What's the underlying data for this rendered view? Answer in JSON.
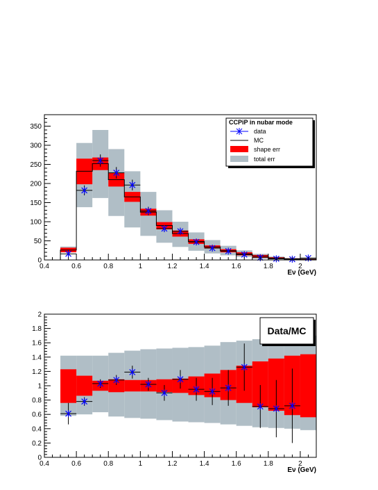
{
  "chart_data": [
    {
      "type": "histogram",
      "xlabel": "Eν (GeV)",
      "xlim": [
        0.4,
        2.1
      ],
      "ylim": [
        0,
        380
      ],
      "xticks": [
        0.4,
        0.6,
        0.8,
        1,
        1.2,
        1.4,
        1.6,
        1.8,
        2
      ],
      "xtick_labels": [
        "0.4",
        "0.6",
        "0.8",
        "1",
        "1.2",
        "1.4",
        "1.6",
        "1.8",
        "2"
      ],
      "yticks": [
        0,
        50,
        100,
        150,
        200,
        250,
        300,
        350
      ],
      "ytick_labels": [
        "0",
        "50",
        "100",
        "150",
        "200",
        "250",
        "300",
        "350"
      ],
      "bin_edges": [
        0.5,
        0.6,
        0.7,
        0.8,
        0.9,
        1.0,
        1.1,
        1.2,
        1.3,
        1.4,
        1.5,
        1.6,
        1.7,
        1.8,
        1.9,
        2.0,
        2.1
      ],
      "legend": {
        "title": "CCPiP in nubar mode",
        "entries": [
          "data",
          "MC",
          "shape err",
          "total err"
        ],
        "position": "top-right"
      },
      "series": [
        {
          "name": "MC",
          "kind": "step",
          "color": "#000000",
          "values": [
            26,
            232,
            252,
            210,
            165,
            125,
            90,
            69,
            48,
            34,
            24,
            16,
            10,
            5,
            3,
            2
          ]
        },
        {
          "name": "shape err",
          "kind": "band",
          "color": "#ff0000",
          "low": [
            20,
            198,
            235,
            192,
            152,
            116,
            80,
            61,
            42,
            30,
            20,
            12,
            7,
            3,
            2,
            1
          ],
          "high": [
            32,
            265,
            268,
            228,
            178,
            134,
            99,
            77,
            54,
            38,
            28,
            20,
            13,
            7,
            4,
            3
          ]
        },
        {
          "name": "total err",
          "kind": "band",
          "color": "#b0bec6",
          "low": [
            20,
            138,
            162,
            115,
            85,
            63,
            45,
            34,
            24,
            17,
            12,
            8,
            4,
            2,
            1,
            1
          ],
          "high": [
            35,
            306,
            340,
            290,
            232,
            178,
            130,
            100,
            72,
            52,
            37,
            25,
            16,
            9,
            5,
            4
          ]
        },
        {
          "name": "data",
          "kind": "points",
          "color": "#0000ff",
          "x": [
            0.55,
            0.65,
            0.75,
            0.85,
            0.95,
            1.05,
            1.15,
            1.25,
            1.35,
            1.45,
            1.55,
            1.65,
            1.75,
            1.85,
            1.95,
            2.05
          ],
          "y": [
            16,
            182,
            260,
            228,
            196,
            128,
            82,
            75,
            47,
            31,
            23,
            14,
            6,
            3,
            2,
            5
          ],
          "yerr": [
            4,
            13,
            16,
            15,
            14,
            11,
            9,
            9,
            7,
            6,
            5,
            4,
            2.5,
            1.7,
            1.4,
            2.2
          ]
        }
      ]
    },
    {
      "type": "histogram",
      "title": "Data/MC",
      "xlabel": "Eν (GeV)",
      "xlim": [
        0.4,
        2.1
      ],
      "ylim": [
        0,
        2
      ],
      "xticks": [
        0.4,
        0.6,
        0.8,
        1,
        1.2,
        1.4,
        1.6,
        1.8,
        2
      ],
      "xtick_labels": [
        "0.4",
        "0.6",
        "0.8",
        "1",
        "1.2",
        "1.4",
        "1.6",
        "1.8",
        "2"
      ],
      "yticks": [
        0,
        0.2,
        0.4,
        0.6,
        0.8,
        1,
        1.2,
        1.4,
        1.6,
        1.8,
        2
      ],
      "ytick_labels": [
        "0",
        "0.2",
        "0.4",
        "0.6",
        "0.8",
        "1",
        "1.2",
        "1.4",
        "1.6",
        "1.8",
        "2"
      ],
      "bin_edges": [
        0.5,
        0.6,
        0.7,
        0.8,
        0.9,
        1.0,
        1.1,
        1.2,
        1.3,
        1.4,
        1.5,
        1.6,
        1.7,
        1.8,
        1.9,
        2.0,
        2.1
      ],
      "series": [
        {
          "name": "total err",
          "kind": "band",
          "color": "#b0bec6",
          "low": [
            0.58,
            0.6,
            0.63,
            0.57,
            0.55,
            0.54,
            0.52,
            0.5,
            0.49,
            0.48,
            0.46,
            0.44,
            0.42,
            0.41,
            0.4,
            0.38
          ],
          "high": [
            1.42,
            1.42,
            1.42,
            1.46,
            1.49,
            1.51,
            1.52,
            1.53,
            1.54,
            1.56,
            1.61,
            1.63,
            1.65,
            1.66,
            1.68,
            1.7
          ]
        },
        {
          "name": "shape err",
          "kind": "band",
          "color": "#ff0000",
          "low": [
            0.76,
            0.86,
            0.93,
            0.91,
            0.92,
            0.92,
            0.91,
            0.9,
            0.87,
            0.84,
            0.8,
            0.76,
            0.7,
            0.65,
            0.59,
            0.56
          ],
          "high": [
            1.23,
            1.14,
            1.07,
            1.09,
            1.08,
            1.08,
            1.09,
            1.1,
            1.13,
            1.17,
            1.22,
            1.28,
            1.34,
            1.38,
            1.42,
            1.44
          ]
        },
        {
          "name": "data",
          "kind": "points",
          "color": "#0000ff",
          "x": [
            0.55,
            0.65,
            0.75,
            0.85,
            0.95,
            1.05,
            1.15,
            1.25,
            1.35,
            1.45,
            1.55,
            1.65,
            1.75,
            1.85,
            1.95
          ],
          "y": [
            0.61,
            0.78,
            1.03,
            1.08,
            1.19,
            1.02,
            0.9,
            1.09,
            0.95,
            0.92,
            0.97,
            1.26,
            0.71,
            0.68,
            0.72
          ],
          "yerr": [
            0.15,
            0.06,
            0.06,
            0.07,
            0.09,
            0.09,
            0.11,
            0.13,
            0.16,
            0.19,
            0.25,
            0.33,
            0.3,
            0.4,
            0.52
          ]
        }
      ]
    }
  ]
}
